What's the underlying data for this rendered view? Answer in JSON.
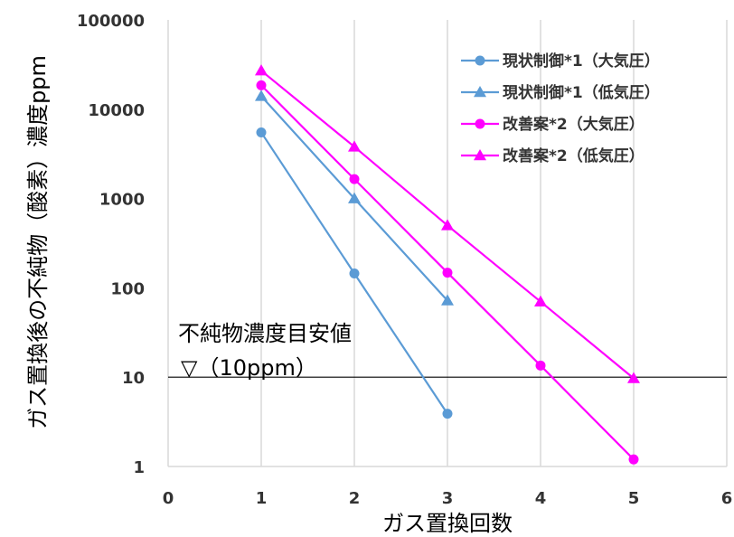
{
  "chart_data": {
    "type": "line",
    "title": "",
    "xlabel": "ガス置換回数",
    "ylabel": "ガス置換後の不純物（酸素）濃度ppm",
    "xlim": [
      0,
      6
    ],
    "ylim": [
      1,
      100000
    ],
    "yscale": "log",
    "x_ticks": [
      "0",
      "1",
      "2",
      "3",
      "4",
      "5",
      "6"
    ],
    "y_ticks": [
      "1",
      "10",
      "100",
      "1000",
      "10000",
      "100000"
    ],
    "grid": "vertical",
    "legend_position": "top-right",
    "series": [
      {
        "name": "現状制御*1（大気圧）",
        "color": "#5b9bd5",
        "marker": "circle",
        "x": [
          1,
          2,
          3
        ],
        "y": [
          5500,
          145,
          3.9
        ]
      },
      {
        "name": "現状制御*1（低気圧）",
        "color": "#5b9bd5",
        "marker": "triangle",
        "x": [
          1,
          2,
          3
        ],
        "y": [
          14000,
          1000,
          72
        ]
      },
      {
        "name": "改善案*2（大気圧）",
        "color": "#ff00ff",
        "marker": "circle",
        "x": [
          1,
          2,
          3,
          4,
          5
        ],
        "y": [
          18500,
          1650,
          148,
          13.5,
          1.2
        ]
      },
      {
        "name": "改善案*2（低気圧）",
        "color": "#ff00ff",
        "marker": "triangle",
        "x": [
          1,
          2,
          3,
          4,
          5
        ],
        "y": [
          27000,
          3800,
          500,
          70,
          9.7
        ]
      }
    ],
    "reference_line": {
      "y": 10,
      "label_line1": "不純物濃度目安値",
      "label_line2": "▽（10ppm）"
    }
  }
}
